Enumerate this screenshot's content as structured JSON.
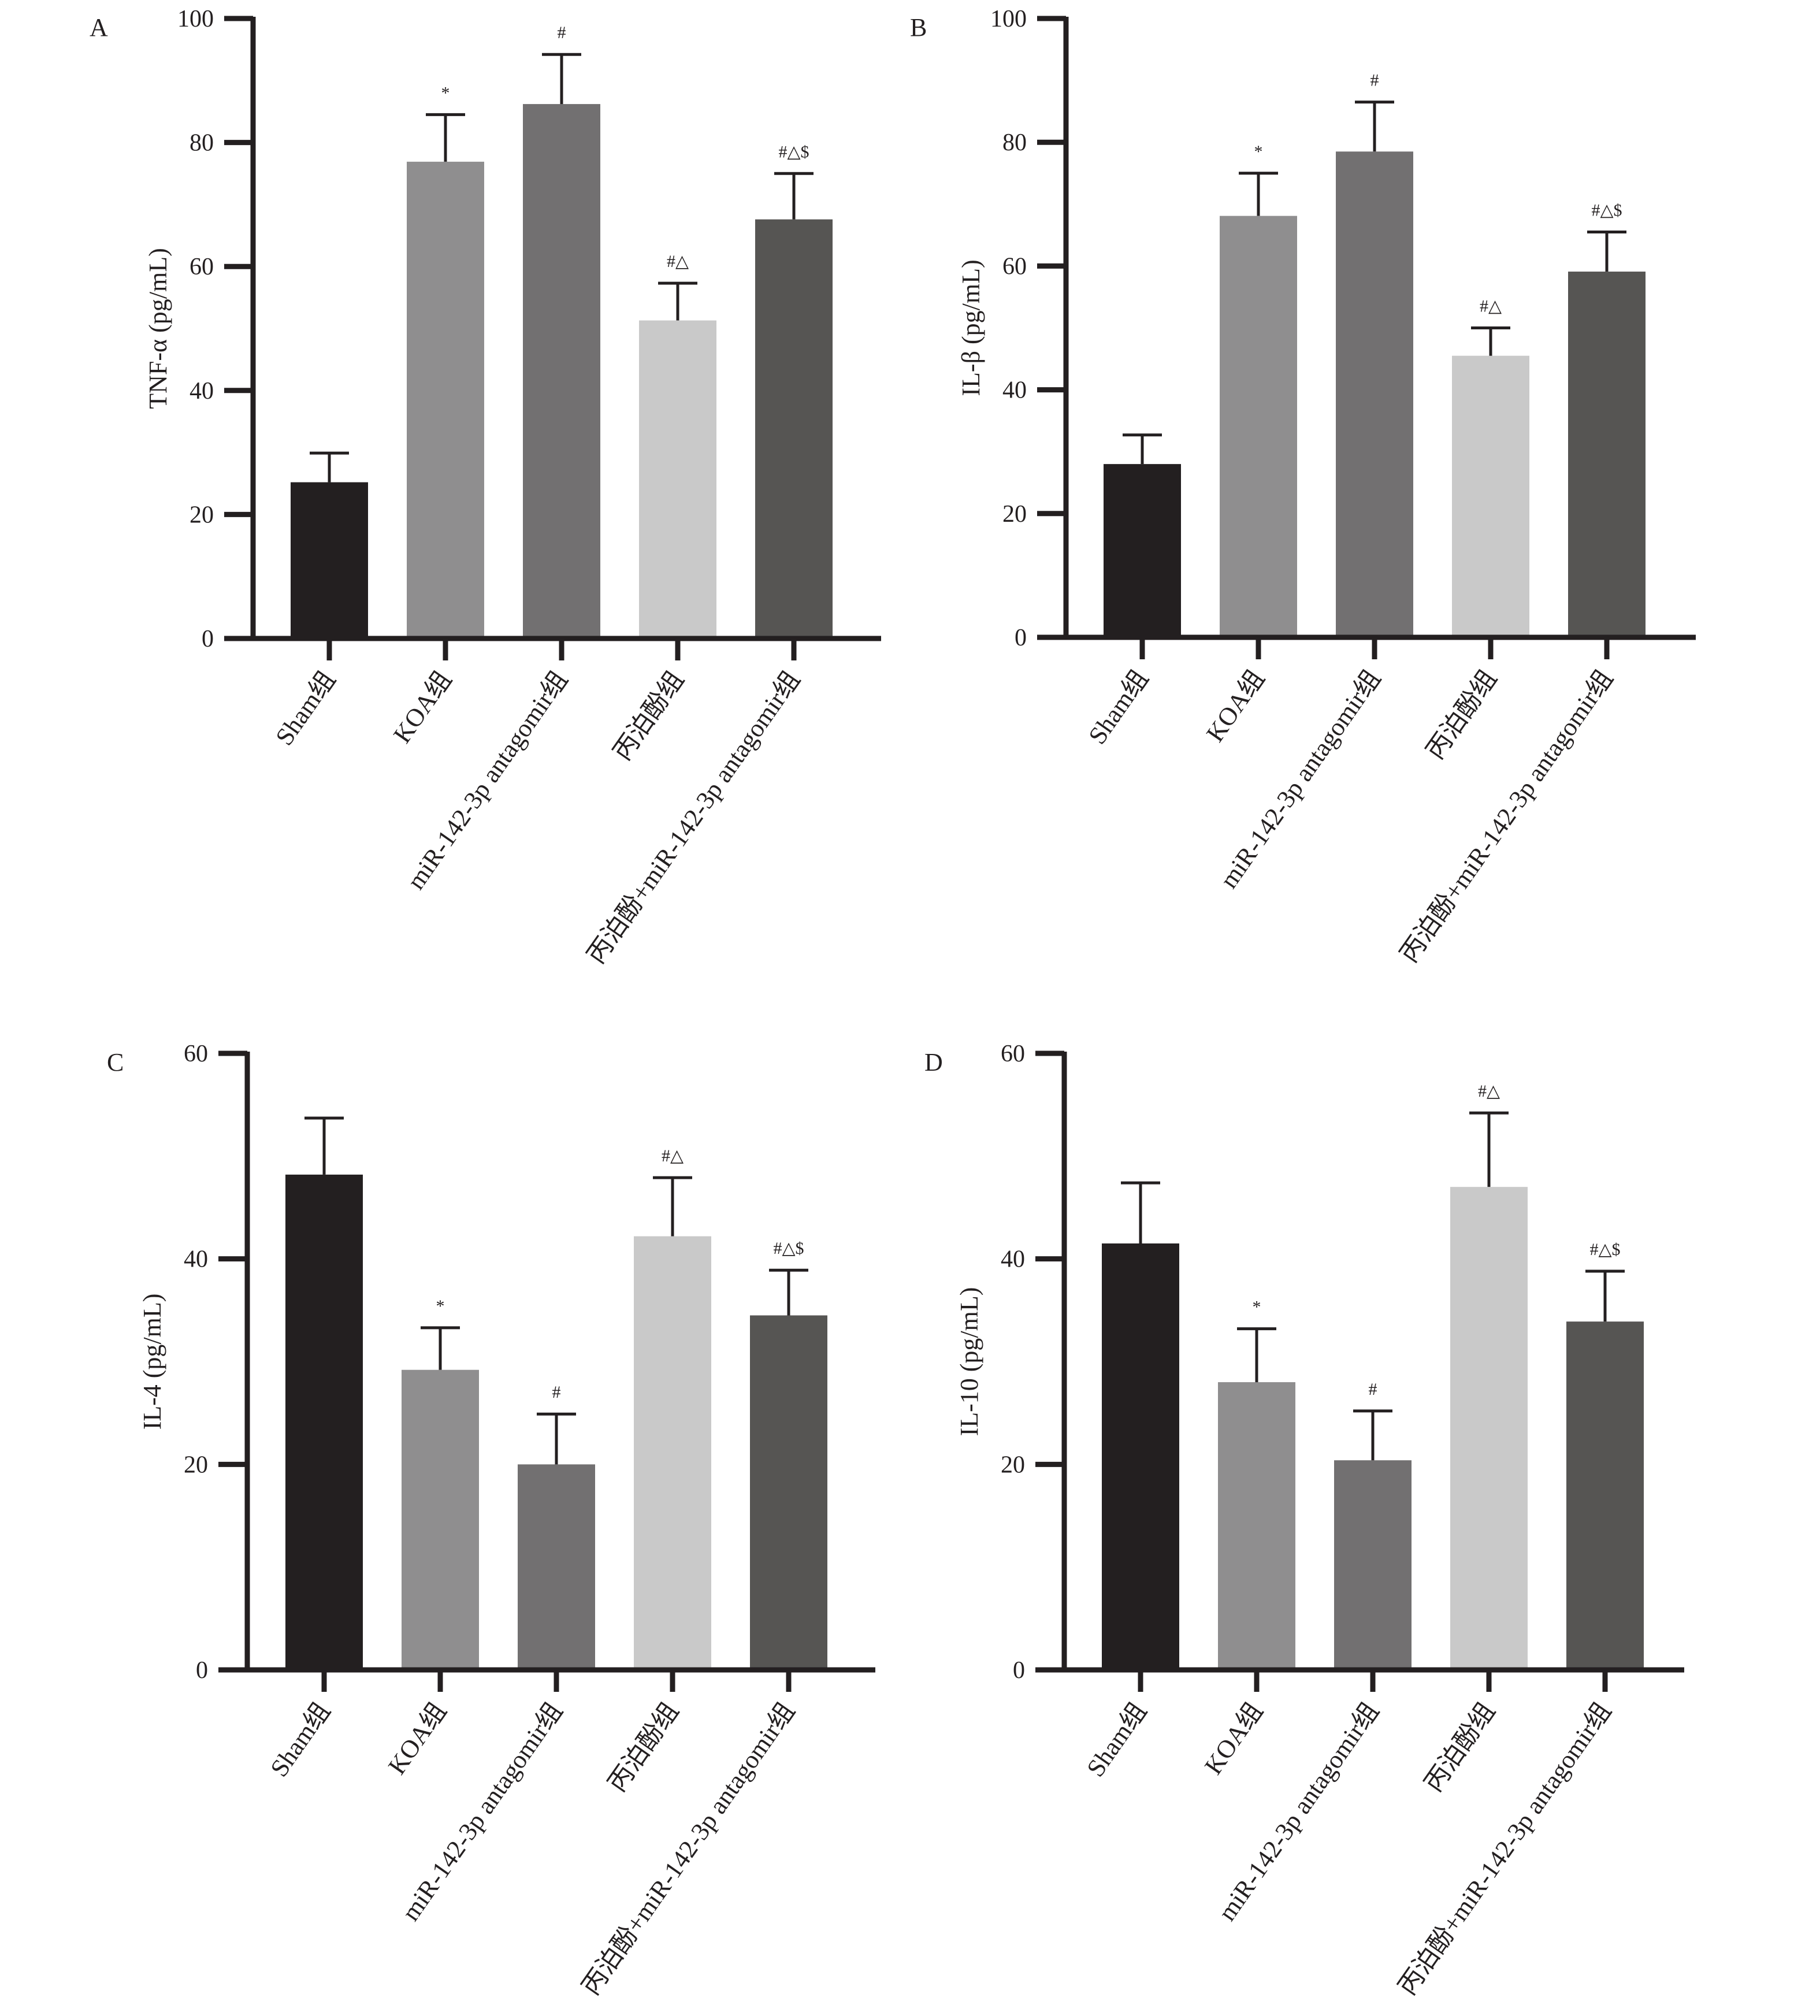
{
  "chart_data": [
    {
      "type": "bar",
      "panel_label": "A",
      "title": "",
      "xlabel": "",
      "ylabel": "TNF-α (pg/mL)",
      "ylim": [
        0,
        100
      ],
      "yticks": [
        0,
        20,
        40,
        60,
        80,
        100
      ],
      "grid": false,
      "categories": [
        "Sham组",
        "KOA组",
        "miR-142-3p antagomir组",
        "丙泊酚组",
        "丙泊酚+miR-142-3p antagomir组"
      ],
      "values": [
        25.2,
        76.9,
        86.2,
        51.3,
        67.6
      ],
      "error_upper": [
        29.9,
        84.5,
        94.2,
        57.3,
        75.0
      ],
      "annotations": [
        "",
        "*",
        "#",
        "#△",
        "#△$"
      ]
    },
    {
      "type": "bar",
      "panel_label": "B",
      "title": "",
      "xlabel": "",
      "ylabel": "IL-β (pg/mL)",
      "ylim": [
        0,
        100
      ],
      "yticks": [
        0,
        20,
        40,
        60,
        80,
        100
      ],
      "grid": false,
      "categories": [
        "Sham组",
        "KOA组",
        "miR-142-3p antagomir组",
        "丙泊酚组",
        "丙泊酚+miR-142-3p antagomir组"
      ],
      "values": [
        28.0,
        68.1,
        78.5,
        45.5,
        59.1
      ],
      "error_upper": [
        32.7,
        75.0,
        86.5,
        50.0,
        65.5
      ],
      "annotations": [
        "",
        "*",
        "#",
        "#△",
        "#△$"
      ]
    },
    {
      "type": "bar",
      "panel_label": "C",
      "title": "",
      "xlabel": "",
      "ylabel": "IL-4 (pg/mL)",
      "ylim": [
        0,
        60
      ],
      "yticks": [
        0,
        20,
        40,
        60
      ],
      "grid": false,
      "categories": [
        "Sham组",
        "KOA组",
        "miR-142-3p antagomir组",
        "丙泊酚组",
        "丙泊酚+miR-142-3p antagomir组"
      ],
      "values": [
        48.2,
        29.2,
        20.0,
        42.2,
        34.5
      ],
      "error_upper": [
        53.7,
        33.3,
        24.9,
        47.9,
        38.9
      ],
      "annotations": [
        "",
        "*",
        "#",
        "#△",
        "#△$"
      ]
    },
    {
      "type": "bar",
      "panel_label": "D",
      "title": "",
      "xlabel": "",
      "ylabel": "IL-10 (pg/mL)",
      "ylim": [
        0,
        60
      ],
      "yticks": [
        0,
        20,
        40,
        60
      ],
      "grid": false,
      "categories": [
        "Sham组",
        "KOA组",
        "miR-142-3p antagomir组",
        "丙泊酚组",
        "丙泊酚+miR-142-3p antagomir组"
      ],
      "values": [
        41.5,
        28.0,
        20.4,
        47.0,
        33.9
      ],
      "error_upper": [
        47.4,
        33.2,
        25.2,
        54.2,
        38.8
      ],
      "annotations": [
        "",
        "*",
        "#",
        "#△",
        "#△$"
      ]
    }
  ],
  "colors": {
    "axis": "#231f20",
    "bars": [
      "#231f20",
      "#8f8e8f",
      "#727071",
      "#c9c9c9",
      "#565553"
    ]
  }
}
